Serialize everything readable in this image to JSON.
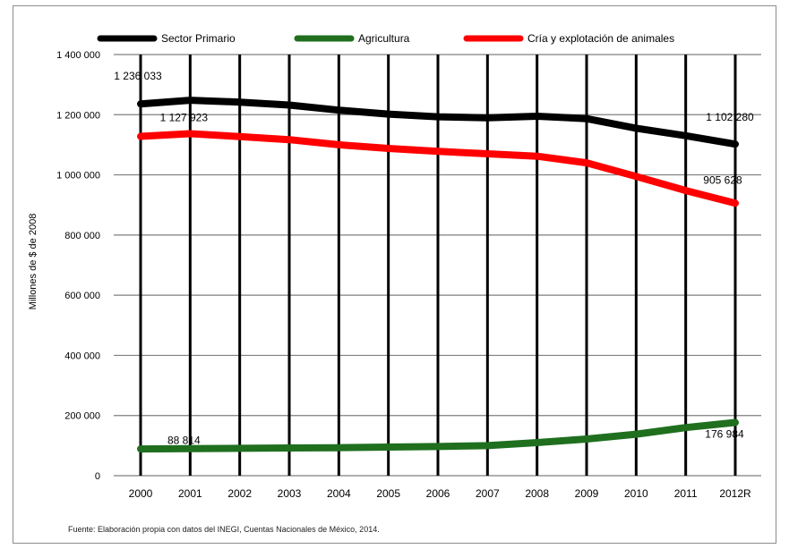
{
  "chart_data": {
    "type": "line",
    "ylabel": "Millones de $ de 2008",
    "xlabel": "",
    "title": "",
    "categories": [
      "2000",
      "2001",
      "2002",
      "2003",
      "2004",
      "2005",
      "2006",
      "2007",
      "2008",
      "2009",
      "2010",
      "2011",
      "2012R"
    ],
    "ylim": [
      0,
      1400000
    ],
    "yticks": [
      0,
      200000,
      400000,
      600000,
      800000,
      1000000,
      1200000,
      1400000
    ],
    "ytick_labels": [
      "0",
      "200 000",
      "400 000",
      "600 000",
      "800 000",
      "1 000 000",
      "1 200 000",
      "1 400 000"
    ],
    "grid": {
      "horizontal": true,
      "vertical": true
    },
    "legend_position": "top",
    "series": [
      {
        "name": "Sector Primario",
        "color": "#000000",
        "values": [
          1236033,
          1248000,
          1242000,
          1232000,
          1215000,
          1202000,
          1193000,
          1190000,
          1195000,
          1187000,
          1155000,
          1130000,
          1102280
        ]
      },
      {
        "name": "Agricultura",
        "color": "#1f6f1f",
        "values": [
          88814,
          90000,
          91000,
          92000,
          93000,
          95000,
          97000,
          100000,
          110000,
          122000,
          138000,
          160000,
          176984
        ]
      },
      {
        "name": "Cría y explotación de animales",
        "color": "#ff0000",
        "values": [
          1127923,
          1137000,
          1127000,
          1117000,
          1100000,
          1088000,
          1078000,
          1070000,
          1062000,
          1040000,
          995000,
          948000,
          905628
        ]
      }
    ],
    "annotations": [
      {
        "text": "1 236 033",
        "series": 0,
        "index": 0
      },
      {
        "text": "1 127 923",
        "series": 2,
        "index": 1
      },
      {
        "text": "1 102 280",
        "series": 0,
        "index": 12
      },
      {
        "text": "905 628",
        "series": 2,
        "index": 12
      },
      {
        "text": "88 814",
        "series": 1,
        "index": 1
      },
      {
        "text": "176 984",
        "series": 1,
        "index": 12
      }
    ]
  },
  "footer": {
    "source": "Fuente: Elaboración propia con datos del INEGI, Cuentas Nacionales de México, 2014."
  }
}
